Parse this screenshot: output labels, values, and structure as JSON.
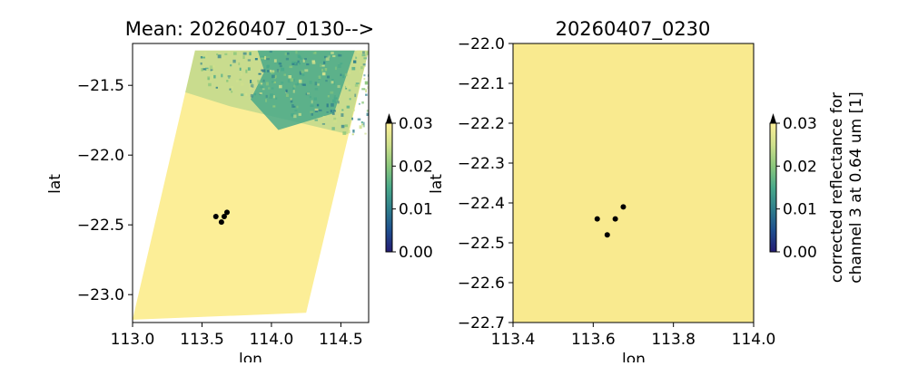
{
  "colors": {
    "low_fill": "#fcee97",
    "background_plot": "#f9ea8f",
    "mid": "#49a98a",
    "dark": "#2f7f8c",
    "marker": "#000000",
    "colormap": [
      "#241c74",
      "#1f4f8f",
      "#2f7f8c",
      "#49a98a",
      "#8bc77c",
      "#cfe08c",
      "#fcef98"
    ]
  },
  "chart_data": [
    {
      "type": "heatmap",
      "title": "Mean: 20260407_0130-->",
      "xlabel": "lon",
      "ylabel": "lat",
      "xlim": [
        113.0,
        114.7
      ],
      "ylim": [
        -23.2,
        -21.2
      ],
      "xticks": [
        "113.0",
        "113.5",
        "114.0",
        "114.5"
      ],
      "xtick_values": [
        113.0,
        113.5,
        114.0,
        114.5
      ],
      "yticks": [
        "−21.5",
        "−22.0",
        "−22.5",
        "−23.0"
      ],
      "ytick_values": [
        -21.5,
        -22.0,
        -22.5,
        -23.0
      ],
      "swath_corners": [
        [
          113.0,
          -23.18
        ],
        [
          114.25,
          -23.13
        ],
        [
          114.7,
          -21.25
        ],
        [
          113.45,
          -21.25
        ]
      ],
      "cloud_region": [
        [
          113.45,
          -21.25
        ],
        [
          114.7,
          -21.25
        ],
        [
          114.55,
          -21.85
        ],
        [
          113.7,
          -21.65
        ],
        [
          113.38,
          -21.55
        ]
      ],
      "points": [
        [
          113.6,
          -22.44
        ],
        [
          113.64,
          -22.48
        ],
        [
          113.66,
          -22.44
        ],
        [
          113.68,
          -22.41
        ]
      ],
      "colorbar": {
        "ticks": [
          "0.00",
          "0.01",
          "0.02",
          "0.03"
        ],
        "values": [
          0.0,
          0.01,
          0.02,
          0.03
        ],
        "extend": "max",
        "label": ""
      }
    },
    {
      "type": "heatmap",
      "title": "20260407_0230",
      "xlabel": "lon",
      "ylabel": "lat",
      "xlim": [
        113.4,
        114.0
      ],
      "ylim": [
        -22.7,
        -22.0
      ],
      "xticks": [
        "113.4",
        "113.6",
        "113.8",
        "114.0"
      ],
      "xtick_values": [
        113.4,
        113.6,
        113.8,
        114.0
      ],
      "yticks": [
        "−22.0",
        "−22.1",
        "−22.2",
        "−22.3",
        "−22.4",
        "−22.5",
        "−22.6",
        "−22.7"
      ],
      "ytick_values": [
        -22.0,
        -22.1,
        -22.2,
        -22.3,
        -22.4,
        -22.5,
        -22.6,
        -22.7
      ],
      "points": [
        [
          113.61,
          -22.44
        ],
        [
          113.635,
          -22.48
        ],
        [
          113.655,
          -22.44
        ],
        [
          113.675,
          -22.41
        ]
      ],
      "colorbar": {
        "ticks": [
          "0.00",
          "0.01",
          "0.02",
          "0.03"
        ],
        "values": [
          0.0,
          0.01,
          0.02,
          0.03
        ],
        "extend": "max",
        "label_line1": "corrected reflectance for",
        "label_line2": "channel 3 at 0.64 um [1]"
      }
    }
  ]
}
